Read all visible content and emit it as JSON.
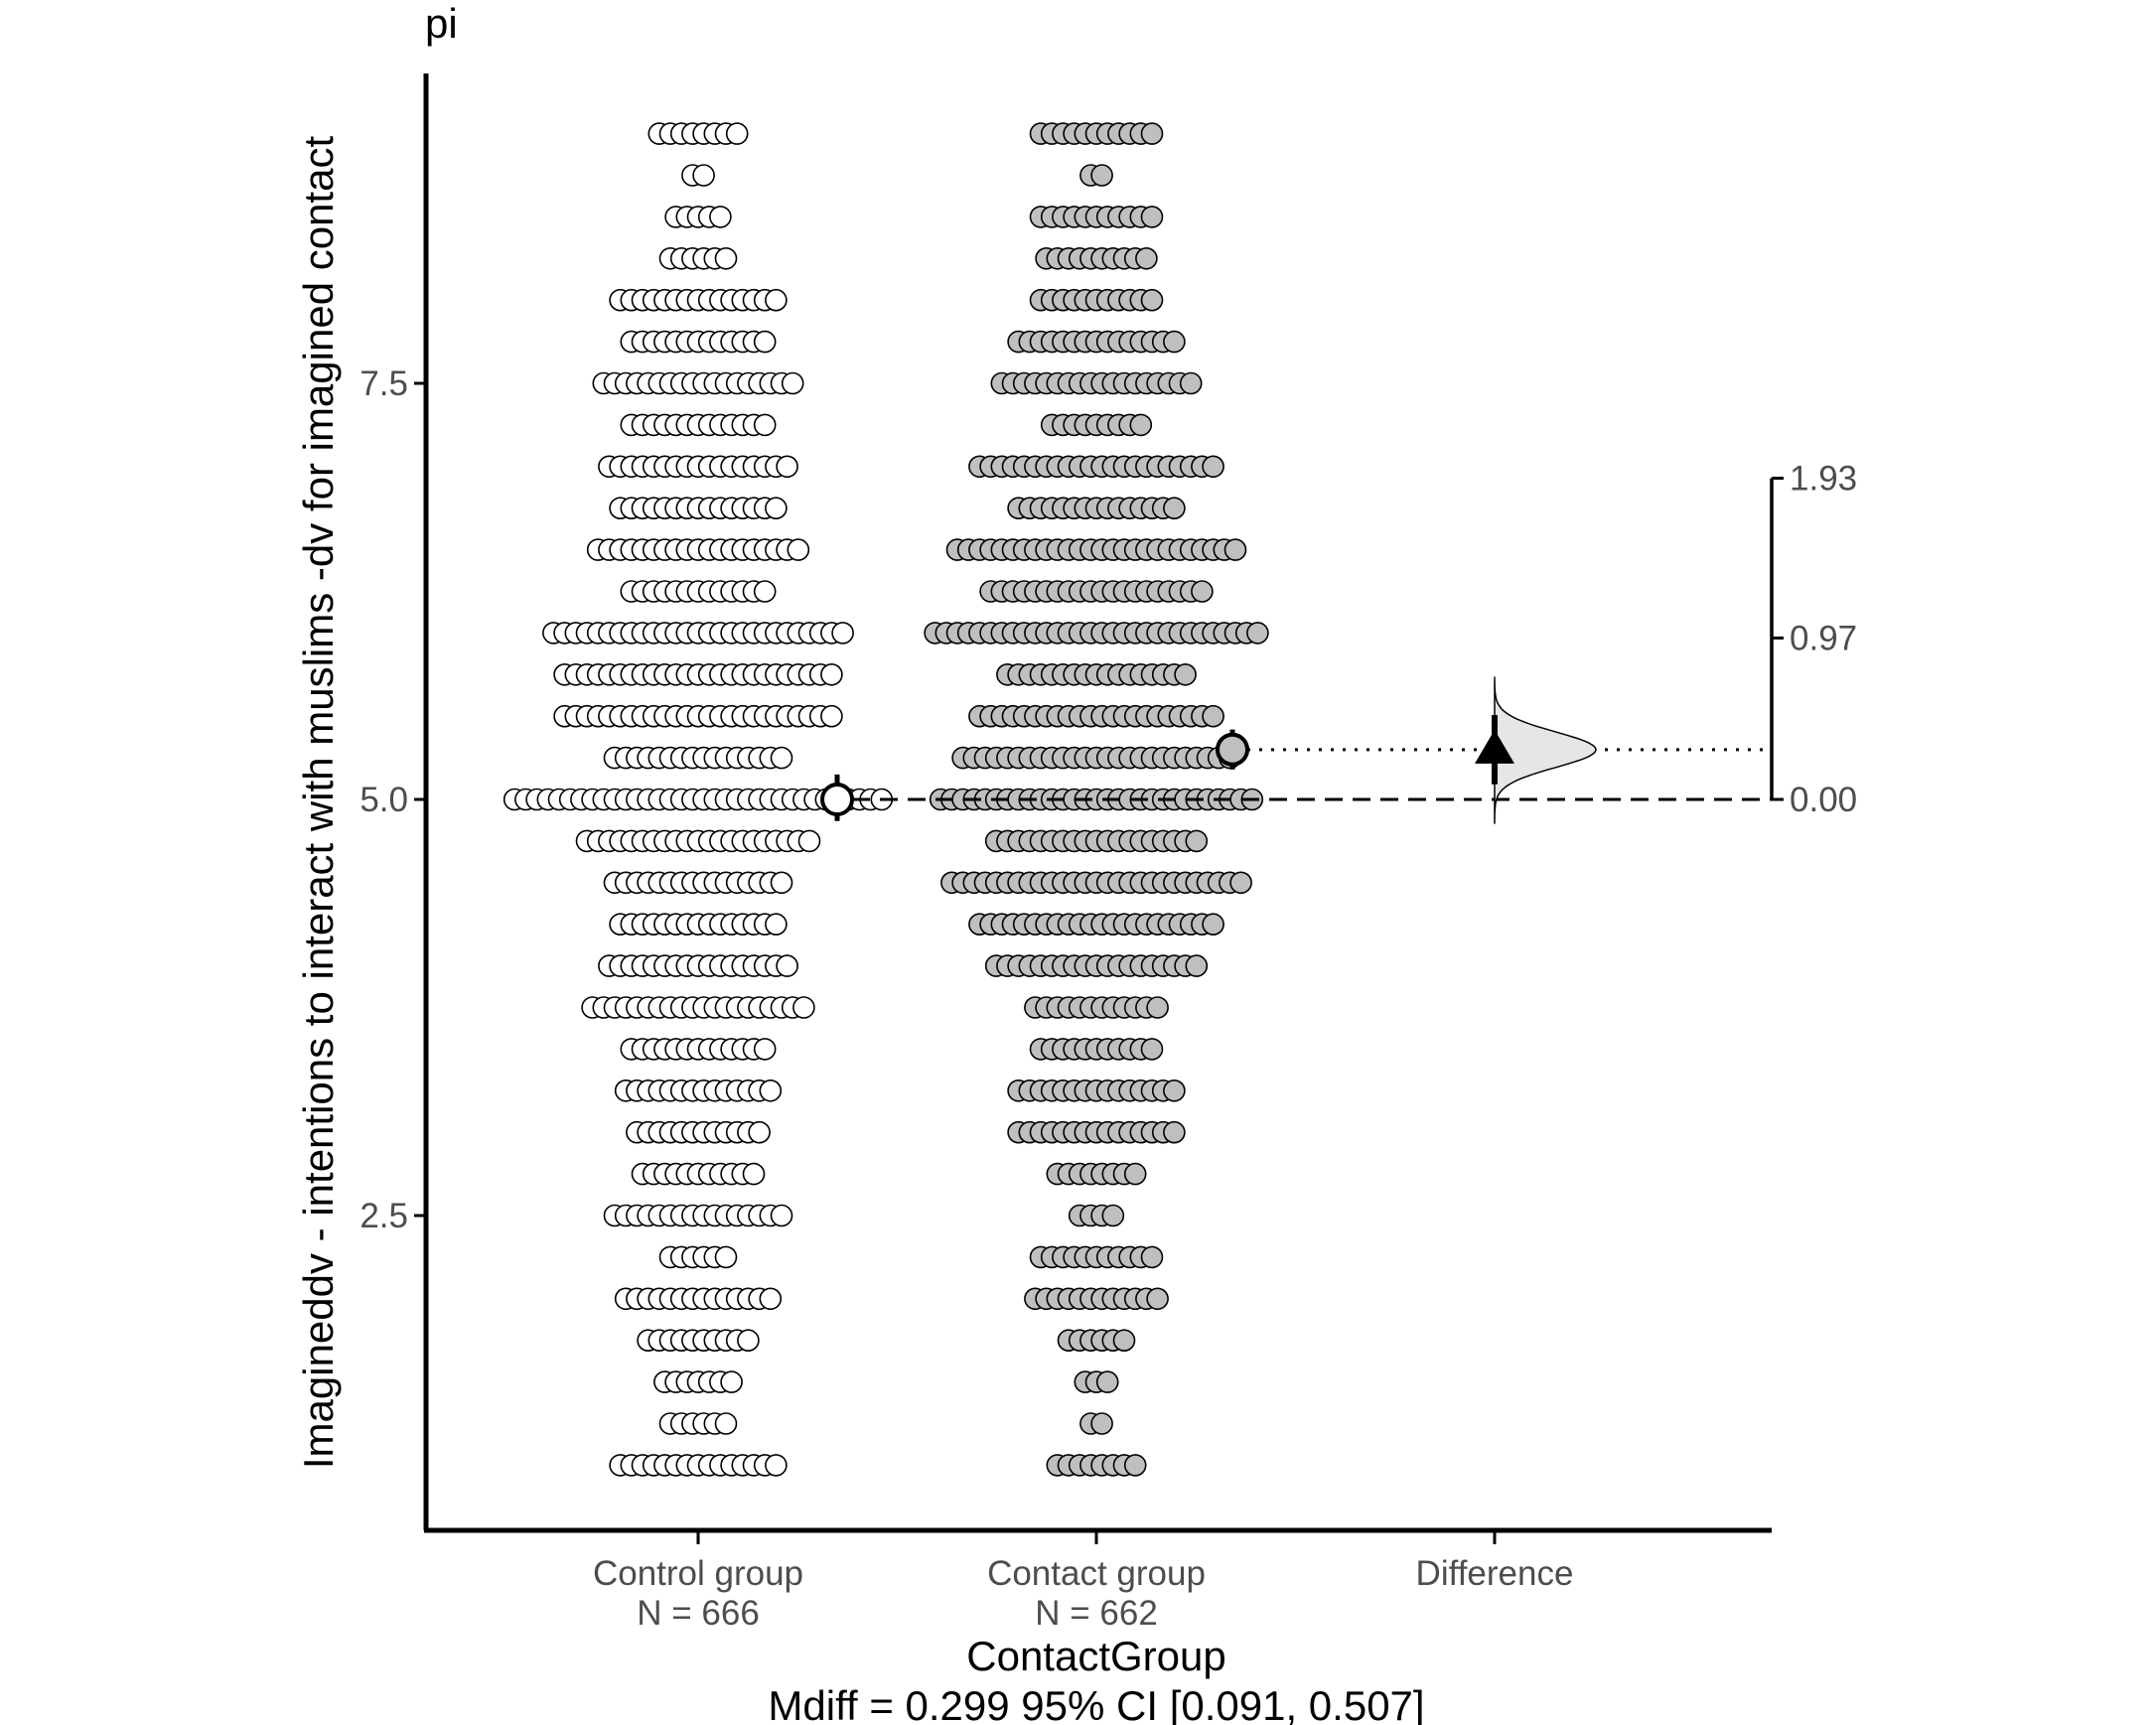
{
  "panel_label": "pi",
  "caption": "Mdiff = 0.299 95% CI [0.091, 0.507]",
  "colors": {
    "control_fill": "#ffffff",
    "contact_fill": "#bfbfbf",
    "difference_density": "#e6e6e6",
    "stroke": "#000000",
    "tick_text": "#4d4d4d"
  },
  "chart_data": {
    "type": "scatter",
    "subtype": "estimation plot (swarm + difference distribution)",
    "xlabel": "ContactGroup",
    "ylabel": "Imagineddv - intentions to interact with muslims -dv  for imagined contact",
    "ylim": [
      0.6,
      9.4
    ],
    "yticks": [
      2.5,
      5.0,
      7.5
    ],
    "ytick_labels": [
      "2.5",
      "5.0",
      "7.5"
    ],
    "categories": [
      "Control group\nN =  666",
      "Contact group\nN =  662",
      "Difference"
    ],
    "category_labels": [
      {
        "name": "Control group",
        "n": "N =  666"
      },
      {
        "name": "Contact group",
        "n": "N =  662"
      },
      {
        "name": "Difference",
        "n": ""
      }
    ],
    "series": [
      {
        "name": "Control group",
        "mean": 5.0,
        "ci": [
          4.87,
          5.15
        ],
        "levels": [
          {
            "y": 1.0,
            "count": 15
          },
          {
            "y": 1.25,
            "count": 6
          },
          {
            "y": 1.5,
            "count": 7
          },
          {
            "y": 1.75,
            "count": 10
          },
          {
            "y": 2.0,
            "count": 14
          },
          {
            "y": 2.25,
            "count": 6
          },
          {
            "y": 2.5,
            "count": 16
          },
          {
            "y": 2.75,
            "count": 11
          },
          {
            "y": 3.0,
            "count": 12
          },
          {
            "y": 3.25,
            "count": 14
          },
          {
            "y": 3.5,
            "count": 13
          },
          {
            "y": 3.75,
            "count": 20
          },
          {
            "y": 4.0,
            "count": 17
          },
          {
            "y": 4.25,
            "count": 15
          },
          {
            "y": 4.5,
            "count": 16
          },
          {
            "y": 4.75,
            "count": 21
          },
          {
            "y": 5.0,
            "count": 34
          },
          {
            "y": 5.25,
            "count": 16
          },
          {
            "y": 5.5,
            "count": 25
          },
          {
            "y": 5.75,
            "count": 25
          },
          {
            "y": 6.0,
            "count": 27
          },
          {
            "y": 6.25,
            "count": 13
          },
          {
            "y": 6.5,
            "count": 19
          },
          {
            "y": 6.75,
            "count": 15
          },
          {
            "y": 7.0,
            "count": 17
          },
          {
            "y": 7.25,
            "count": 13
          },
          {
            "y": 7.5,
            "count": 18
          },
          {
            "y": 7.75,
            "count": 13
          },
          {
            "y": 8.0,
            "count": 15
          },
          {
            "y": 8.25,
            "count": 6
          },
          {
            "y": 8.5,
            "count": 5
          },
          {
            "y": 8.75,
            "count": 2
          },
          {
            "y": 9.0,
            "count": 8
          }
        ]
      },
      {
        "name": "Contact group",
        "mean": 5.3,
        "ci": [
          5.18,
          5.42
        ],
        "levels": [
          {
            "y": 1.0,
            "count": 8
          },
          {
            "y": 1.25,
            "count": 2
          },
          {
            "y": 1.5,
            "count": 3
          },
          {
            "y": 1.75,
            "count": 6
          },
          {
            "y": 2.0,
            "count": 12
          },
          {
            "y": 2.25,
            "count": 11
          },
          {
            "y": 2.5,
            "count": 4
          },
          {
            "y": 2.75,
            "count": 8
          },
          {
            "y": 3.0,
            "count": 15
          },
          {
            "y": 3.25,
            "count": 15
          },
          {
            "y": 3.5,
            "count": 11
          },
          {
            "y": 3.75,
            "count": 12
          },
          {
            "y": 4.0,
            "count": 19
          },
          {
            "y": 4.25,
            "count": 22
          },
          {
            "y": 4.5,
            "count": 27
          },
          {
            "y": 4.75,
            "count": 19
          },
          {
            "y": 5.0,
            "count": 29
          },
          {
            "y": 5.25,
            "count": 25
          },
          {
            "y": 5.5,
            "count": 22
          },
          {
            "y": 5.75,
            "count": 17
          },
          {
            "y": 6.0,
            "count": 30
          },
          {
            "y": 6.25,
            "count": 20
          },
          {
            "y": 6.5,
            "count": 26
          },
          {
            "y": 6.75,
            "count": 15
          },
          {
            "y": 7.0,
            "count": 22
          },
          {
            "y": 7.25,
            "count": 9
          },
          {
            "y": 7.5,
            "count": 18
          },
          {
            "y": 7.75,
            "count": 15
          },
          {
            "y": 8.0,
            "count": 11
          },
          {
            "y": 8.25,
            "count": 10
          },
          {
            "y": 8.5,
            "count": 11
          },
          {
            "y": 8.75,
            "count": 2
          },
          {
            "y": 9.0,
            "count": 11
          }
        ]
      }
    ],
    "difference": {
      "mean": 0.299,
      "ci": [
        0.091,
        0.507
      ],
      "right_axis_ticks": [
        0.0,
        0.97,
        1.93
      ],
      "right_axis_labels": [
        "0.00",
        "0.97",
        "1.93"
      ]
    },
    "grid": false
  }
}
